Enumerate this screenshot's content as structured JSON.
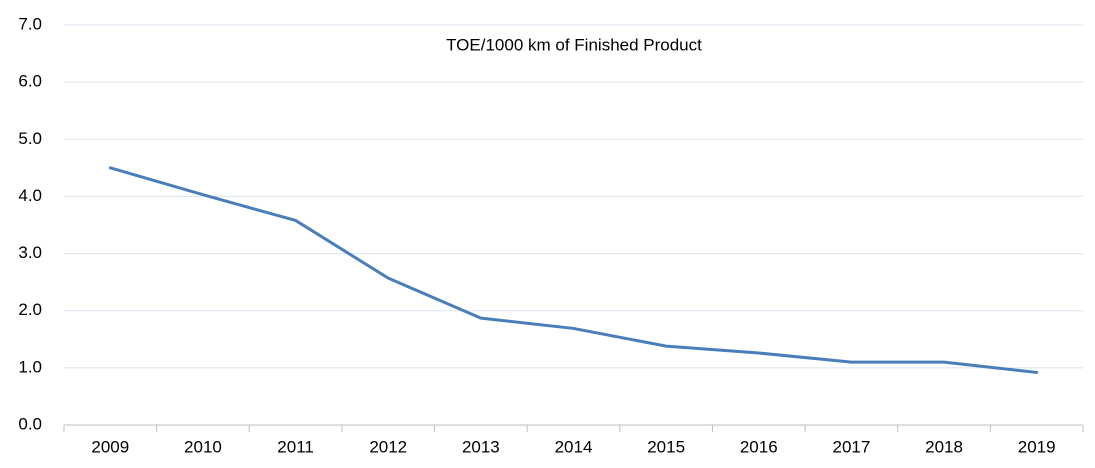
{
  "chart_data": {
    "type": "line",
    "title": "TOE/1000 km of Finished Product",
    "categories": [
      "2009",
      "2010",
      "2011",
      "2012",
      "2013",
      "2014",
      "2015",
      "2016",
      "2017",
      "2018",
      "2019"
    ],
    "series": [
      {
        "name": "TOE/1000 km of Finished Product",
        "color": "#4a7ebb",
        "values": [
          4.5,
          4.03,
          3.58,
          2.57,
          1.87,
          1.69,
          1.38,
          1.26,
          1.1,
          1.1,
          0.92
        ]
      }
    ],
    "ylim": [
      0,
      7
    ],
    "yticks": [
      {
        "value": 0,
        "label": "0.0"
      },
      {
        "value": 1,
        "label": "1.0"
      },
      {
        "value": 2,
        "label": "2.0"
      },
      {
        "value": 3,
        "label": "3.0"
      },
      {
        "value": 4,
        "label": "4.0"
      },
      {
        "value": 5,
        "label": "5.0"
      },
      {
        "value": 6,
        "label": "6.0"
      },
      {
        "value": 7,
        "label": "7.0"
      }
    ],
    "grid": true
  }
}
